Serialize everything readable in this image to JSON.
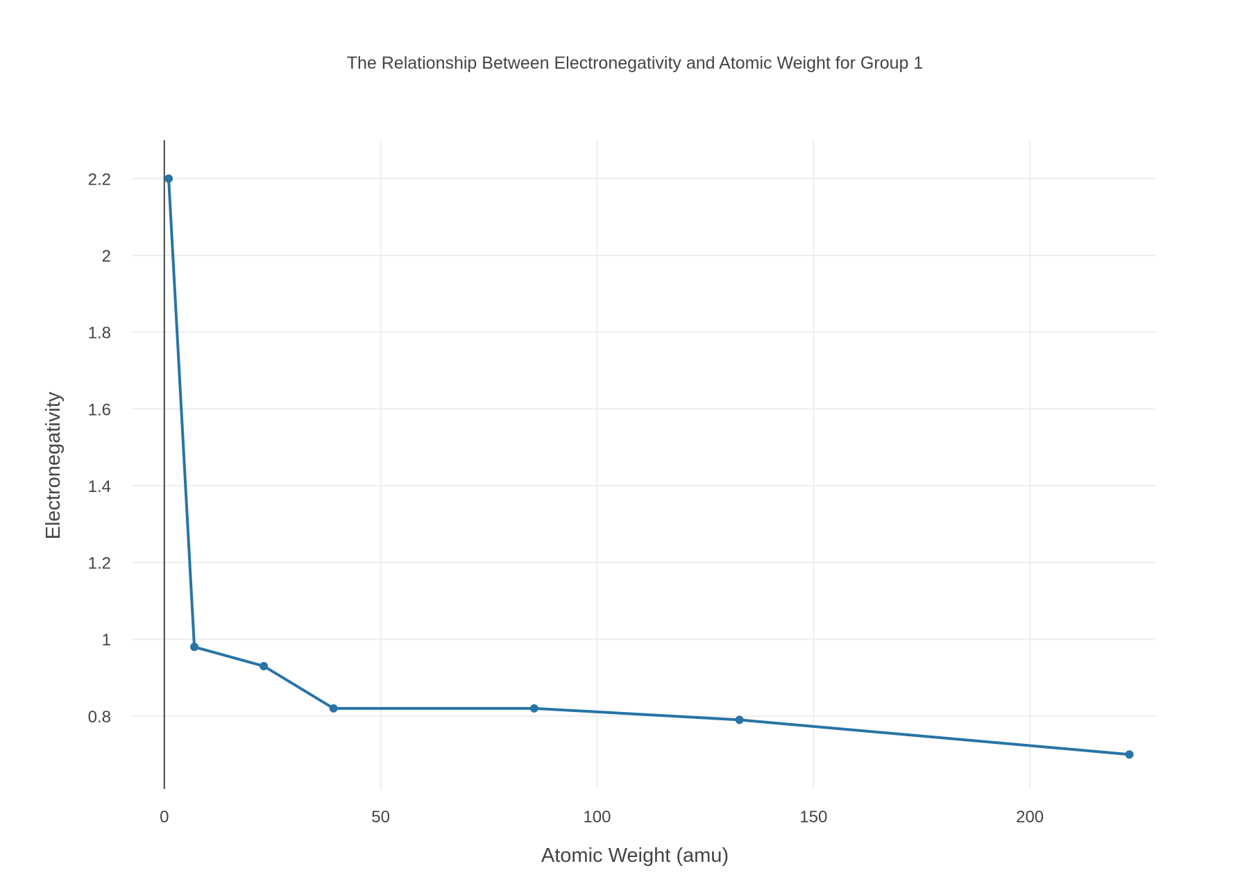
{
  "chart_data": {
    "type": "line",
    "title": "The Relationship Between Electronegativity and Atomic Weight for Group 1",
    "xlabel": "Atomic Weight (amu)",
    "ylabel": "Electronegativity",
    "xlim": [
      -7.5,
      229
    ],
    "ylim": [
      0.61,
      2.3
    ],
    "x_ticks": [
      0,
      50,
      100,
      150,
      200
    ],
    "y_ticks": [
      0.8,
      1,
      1.2,
      1.4,
      1.6,
      1.8,
      2,
      2.2
    ],
    "x_tick_labels": [
      "0",
      "50",
      "100",
      "150",
      "200"
    ],
    "y_tick_labels": [
      "0.8",
      "1",
      "1.2",
      "1.4",
      "1.6",
      "1.8",
      "2",
      "2.2"
    ],
    "grid": true,
    "legend": "none",
    "mode": "lines+markers",
    "color": "#2874a6",
    "series": [
      {
        "x": [
          1.008,
          6.94,
          22.99,
          39.098,
          85.468,
          132.905,
          223
        ],
        "y": [
          2.2,
          0.98,
          0.93,
          0.82,
          0.82,
          0.79,
          0.7
        ]
      }
    ]
  }
}
